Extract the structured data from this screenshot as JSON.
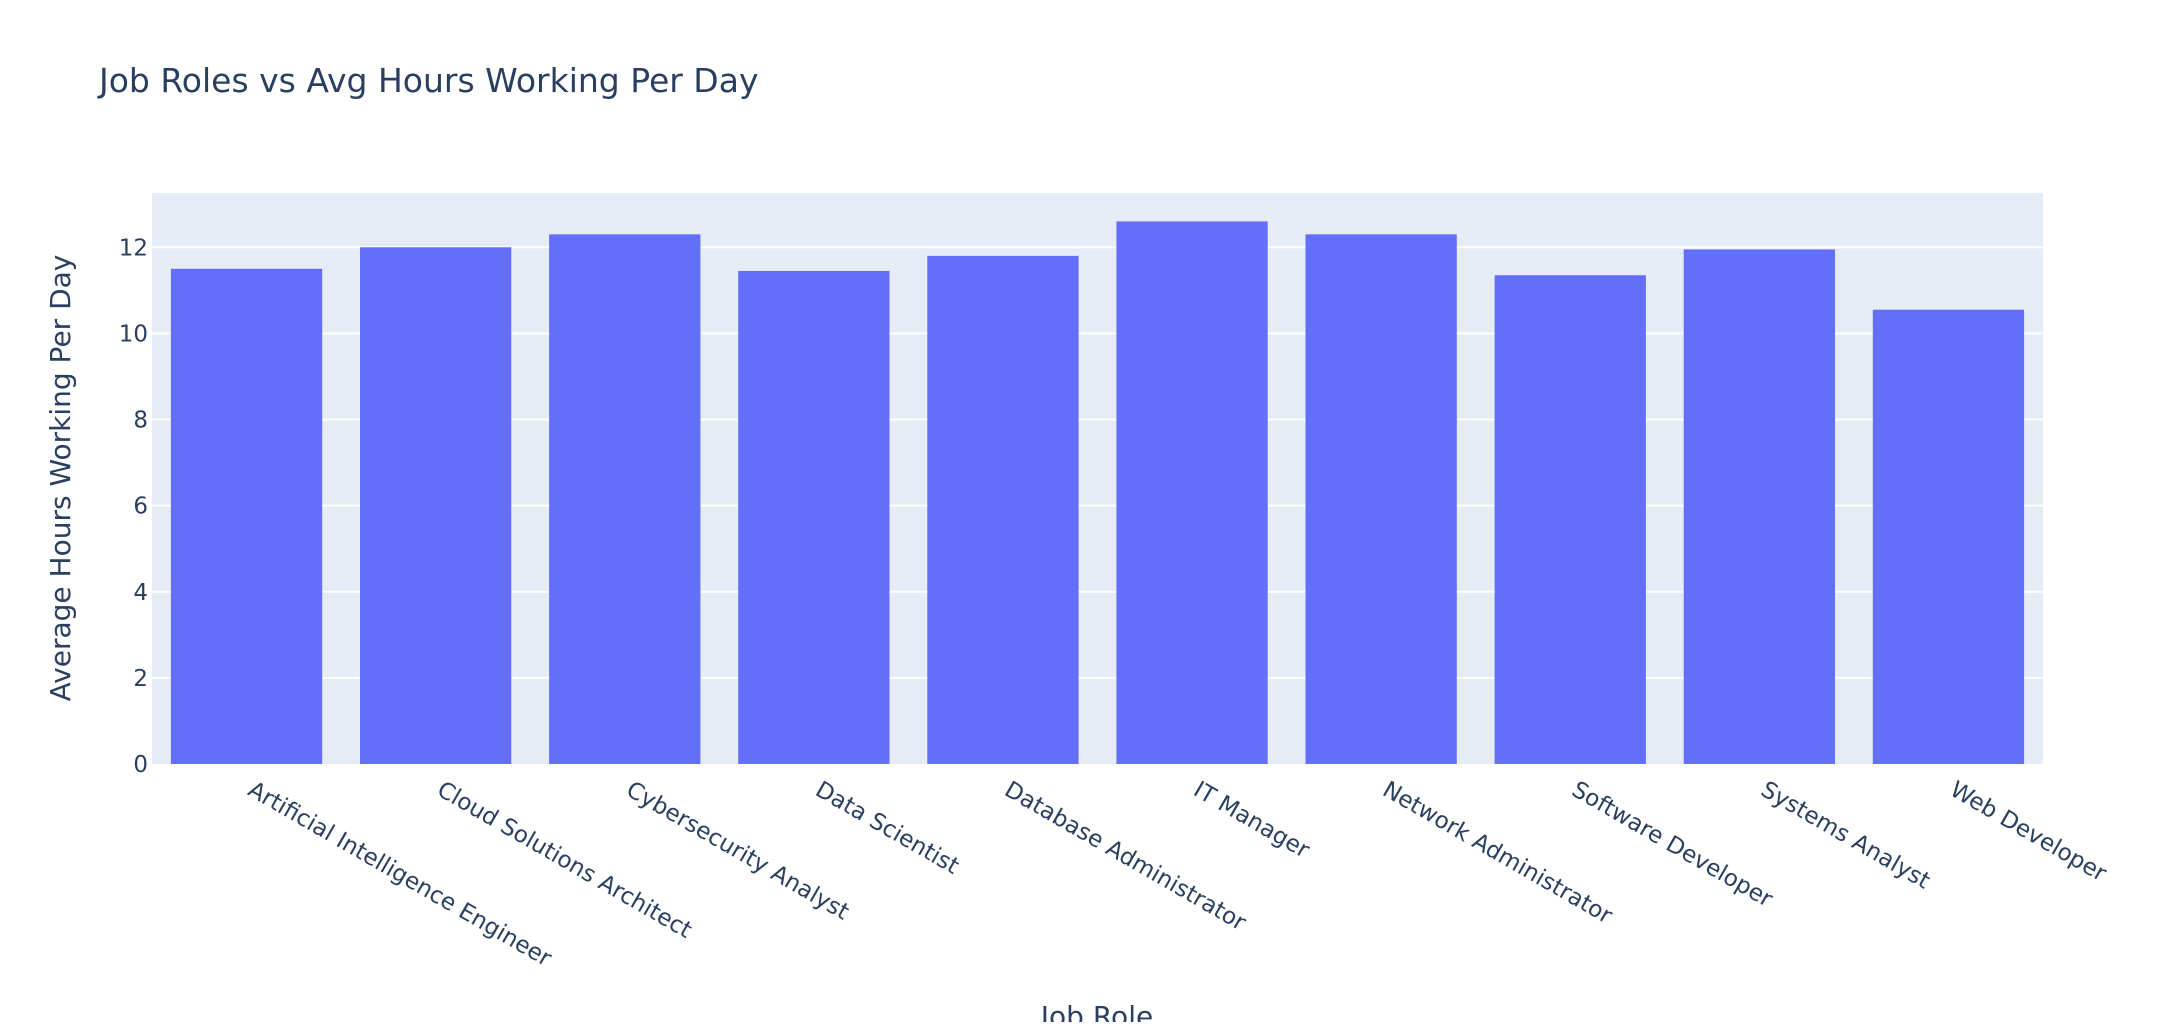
{
  "chart_data": {
    "type": "bar",
    "title": "Job Roles vs Avg Hours Working Per Day",
    "xlabel": "Job Role",
    "ylabel": "Average Hours Working Per Day",
    "categories": [
      "Artificial Intelligence Engineer",
      "Cloud Solutions Architect",
      "Cybersecurity Analyst",
      "Data Scientist",
      "Database Administrator",
      "IT Manager",
      "Network Administrator",
      "Software Developer",
      "Systems Analyst",
      "Web Developer"
    ],
    "values": [
      11.5,
      12.0,
      12.3,
      11.45,
      11.8,
      12.6,
      12.3,
      11.35,
      11.95,
      10.55
    ],
    "yticks": [
      0,
      2,
      4,
      6,
      8,
      10,
      12
    ],
    "ylim": [
      0,
      13.26
    ],
    "grid": true,
    "colors": {
      "bar": "#636efa",
      "plot_bg": "#e5ecf6",
      "grid": "#ffffff",
      "text": "#2a3f5f"
    }
  }
}
